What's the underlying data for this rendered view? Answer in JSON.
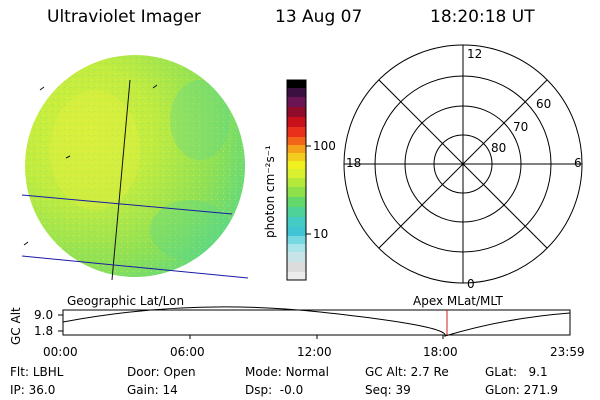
{
  "header": {
    "title": "Ultraviolet Imager",
    "date": "13 Aug 07",
    "time": "18:20:18 UT"
  },
  "colorbar": {
    "units_label": "photon cm⁻²s⁻¹",
    "ticks": [
      "100",
      "10"
    ],
    "scale": "log"
  },
  "polar_grid": {
    "mlt_labels": [
      "12",
      "18",
      "6",
      "0"
    ],
    "lat_labels": [
      "60",
      "70",
      "80"
    ]
  },
  "timeline": {
    "left_label": "Geographic Lat/Lon",
    "right_label": "Apex MLat/MLT",
    "y_axis_label": "GC Alt",
    "y_ticks": [
      "9.0",
      "1.8"
    ],
    "x_ticks": [
      "00:00",
      "06:00",
      "12:00",
      "18:00",
      "23:59"
    ],
    "marker_time": "18:20:18",
    "marker_color": "#cc2222"
  },
  "status": {
    "row1": [
      {
        "label": "Flt:",
        "value": "LBHL"
      },
      {
        "label": "Door:",
        "value": "Open"
      },
      {
        "label": "Mode:",
        "value": "Normal"
      },
      {
        "label": "GC Alt:",
        "value": "2.7 Re"
      },
      {
        "label": "GLat:",
        "value": "9.1"
      }
    ],
    "row2": [
      {
        "label": "IP:",
        "value": "36.0"
      },
      {
        "label": "Gain:",
        "value": "14"
      },
      {
        "label": "Dsp:",
        "value": "-0.0"
      },
      {
        "label": "Seq:",
        "value": "39"
      },
      {
        "label": "GLon:",
        "value": "271.9"
      }
    ]
  }
}
